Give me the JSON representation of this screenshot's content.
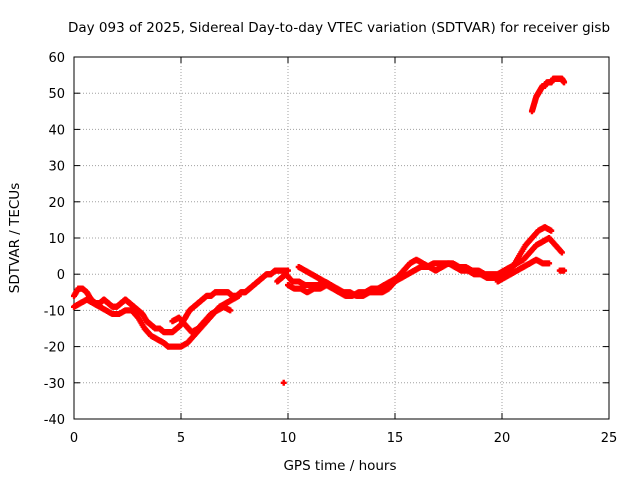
{
  "chart_data": {
    "type": "scatter",
    "title": "Day 093 of 2025, Sidereal Day-to-day VTEC variation (SDTVAR) for receiver gisb",
    "xlabel": "GPS time / hours",
    "ylabel": "SDTVAR / TECUs",
    "xlim": [
      0,
      25
    ],
    "ylim": [
      -40,
      60
    ],
    "xticks": [
      0,
      5,
      10,
      15,
      20,
      25
    ],
    "yticks": [
      -40,
      -30,
      -20,
      -10,
      0,
      10,
      20,
      30,
      40,
      50,
      60
    ],
    "xtick_labels": [
      "0",
      "5",
      "10",
      "15",
      "20",
      "25"
    ],
    "ytick_labels": [
      "-40",
      "-30",
      "-20",
      "-10",
      "0",
      "10",
      "20",
      "30",
      "40",
      "50",
      "60"
    ],
    "grid": true,
    "marker": "plus",
    "color": "#ff0000",
    "series": [
      {
        "name": "track-main",
        "x": [
          0.0,
          0.2,
          0.4,
          0.6,
          0.8,
          1.0,
          1.2,
          1.4,
          1.6,
          1.8,
          2.0,
          2.2,
          2.4,
          2.6,
          2.8,
          3.0,
          3.2,
          3.4,
          3.6,
          3.8,
          4.0,
          4.2,
          4.4,
          4.6,
          4.8,
          5.0,
          5.2,
          5.4,
          5.6,
          5.8,
          6.0,
          6.2,
          6.4,
          6.6,
          6.8,
          7.0,
          7.2,
          7.4,
          7.6,
          7.8,
          8.0,
          8.2,
          8.4,
          8.6,
          8.8,
          9.0,
          9.2,
          9.4,
          9.6,
          9.8,
          10.0
        ],
        "y": [
          -6,
          -4,
          -4,
          -5,
          -7,
          -8,
          -8,
          -7,
          -8,
          -9,
          -9,
          -8,
          -7,
          -8,
          -9,
          -10,
          -11,
          -13,
          -14,
          -15,
          -15,
          -16,
          -16,
          -16,
          -15,
          -14,
          -12,
          -10,
          -9,
          -8,
          -7,
          -6,
          -6,
          -5,
          -5,
          -5,
          -5,
          -6,
          -6,
          -5,
          -5,
          -4,
          -3,
          -2,
          -1,
          0,
          0,
          1,
          1,
          1,
          1
        ]
      },
      {
        "name": "track-lower",
        "x": [
          0.0,
          0.3,
          0.6,
          0.9,
          1.2,
          1.5,
          1.8,
          2.1,
          2.4,
          2.7,
          3.0,
          3.3,
          3.6,
          3.9,
          4.2,
          4.4
        ],
        "y": [
          -9,
          -8,
          -7,
          -8,
          -9,
          -10,
          -11,
          -11,
          -10,
          -10,
          -12,
          -15,
          -17,
          -18,
          -19,
          -20
        ]
      },
      {
        "name": "track-lower-2",
        "x": [
          4.4,
          4.7,
          5.0,
          5.3,
          5.6,
          5.9,
          6.2,
          6.5,
          6.8,
          7.1,
          7.4,
          7.7
        ],
        "y": [
          -20,
          -20,
          -20,
          -19,
          -17,
          -15,
          -13,
          -11,
          -9,
          -8,
          -7,
          -6
        ]
      },
      {
        "name": "track-mid",
        "x": [
          4.6,
          4.9,
          5.2,
          5.5,
          5.8,
          6.1,
          6.4,
          6.7,
          7.0,
          7.3
        ],
        "y": [
          -13,
          -12,
          -14,
          -16,
          -15,
          -13,
          -11,
          -10,
          -9,
          -10
        ]
      },
      {
        "name": "track-evening",
        "x": [
          9.5,
          9.7,
          9.9,
          10.2,
          10.5,
          10.8,
          11.1,
          11.4,
          11.7,
          12.0,
          12.3,
          12.6,
          12.9,
          13.2,
          13.5,
          13.8,
          14.1,
          14.4,
          14.7,
          15.0,
          15.3,
          15.6,
          15.9,
          16.2,
          16.5,
          16.8,
          17.1,
          17.4,
          17.7,
          18.0,
          18.3,
          18.6,
          18.9,
          19.2,
          19.5,
          19.8,
          20.1,
          20.4,
          20.7,
          21.0,
          21.3,
          21.6,
          21.9,
          22.2,
          22.5,
          22.8
        ],
        "y": [
          -2,
          -1,
          0,
          -2,
          -2,
          -3,
          -3,
          -3,
          -2,
          -3,
          -4,
          -5,
          -5,
          -6,
          -6,
          -5,
          -5,
          -5,
          -4,
          -2,
          -1,
          0,
          1,
          2,
          2,
          3,
          3,
          3,
          3,
          2,
          2,
          1,
          1,
          0,
          0,
          0,
          1,
          2,
          3,
          4,
          6,
          8,
          9,
          10,
          8,
          6
        ]
      },
      {
        "name": "track-evening-2",
        "x": [
          10.0,
          10.3,
          10.6,
          10.9,
          11.2,
          11.5,
          11.8,
          12.1,
          12.4,
          12.7,
          13.0,
          13.3,
          13.6,
          13.9,
          14.2,
          14.5,
          14.8,
          15.1,
          15.4,
          15.7,
          16.0,
          16.3,
          16.6,
          16.9,
          17.2,
          17.5,
          17.8,
          18.1,
          18.4,
          18.7,
          19.0,
          19.3,
          19.6,
          19.9,
          20.2,
          20.5,
          20.8,
          21.1,
          21.4,
          21.7,
          22.0,
          22.3
        ],
        "y": [
          -3,
          -4,
          -4,
          -5,
          -4,
          -4,
          -3,
          -4,
          -5,
          -6,
          -6,
          -5,
          -5,
          -4,
          -4,
          -3,
          -2,
          -1,
          1,
          3,
          4,
          3,
          2,
          1,
          2,
          3,
          2,
          1,
          1,
          0,
          0,
          -1,
          -1,
          -1,
          0,
          2,
          5,
          8,
          10,
          12,
          13,
          12
        ]
      },
      {
        "name": "track-upper-arc",
        "x": [
          10.5,
          10.8,
          11.1,
          11.4,
          11.7,
          12.0
        ],
        "y": [
          2,
          1,
          0,
          -1,
          -2,
          -3
        ]
      },
      {
        "name": "track-late",
        "x": [
          19.8,
          20.1,
          20.4,
          20.7,
          21.0,
          21.3,
          21.6,
          21.9,
          22.2
        ],
        "y": [
          -2,
          -1,
          0,
          1,
          2,
          3,
          4,
          3,
          3
        ]
      },
      {
        "name": "track-end",
        "x": [
          22.7,
          22.9
        ],
        "y": [
          1,
          1
        ]
      },
      {
        "name": "track-high",
        "x": [
          21.4,
          21.5,
          21.6,
          21.7,
          21.8,
          21.9,
          22.0,
          22.1,
          22.2,
          22.3,
          22.4,
          22.5,
          22.6,
          22.7,
          22.8,
          22.9
        ],
        "y": [
          45,
          47,
          49,
          50,
          51,
          52,
          52,
          53,
          53,
          53,
          54,
          54,
          54,
          54,
          54,
          53
        ]
      },
      {
        "name": "outlier",
        "x": [
          9.8
        ],
        "y": [
          -30
        ]
      }
    ]
  }
}
